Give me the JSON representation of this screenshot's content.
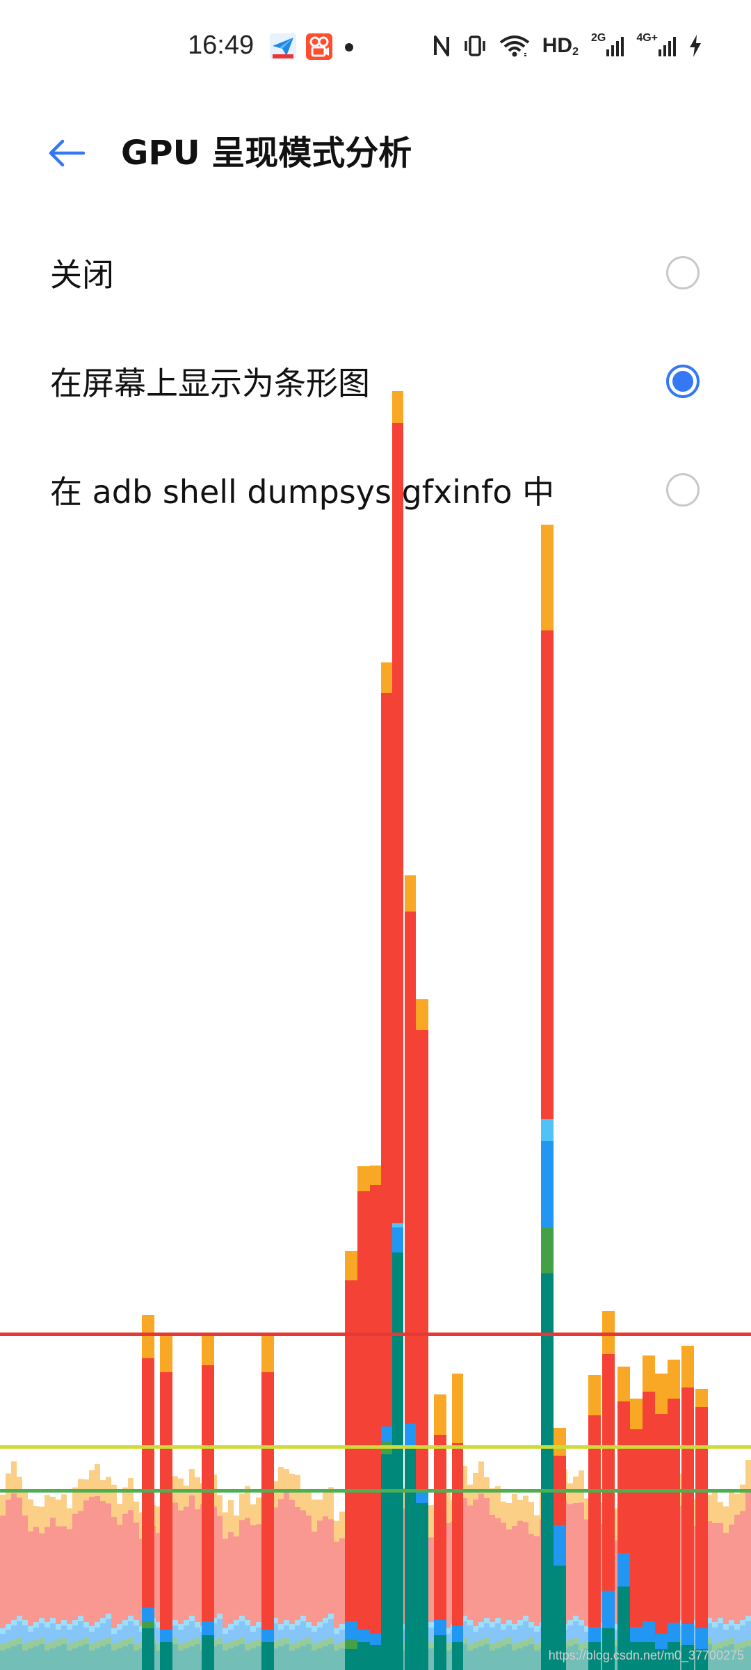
{
  "status_bar": {
    "time": "16:49",
    "network_label": "HD",
    "network_sub": "2",
    "sim1": "2G",
    "sim2": "4G+",
    "icons": [
      "nfc-icon",
      "vibrate-icon",
      "wifi-icon",
      "signal-2g-icon",
      "signal-4g-icon",
      "charging-icon"
    ],
    "notification_icons": [
      "paper-plane-app-icon",
      "kuaishou-app-icon"
    ]
  },
  "header": {
    "title": "GPU 呈现模式分析"
  },
  "options": [
    {
      "label": "关闭",
      "checked": false
    },
    {
      "label": "在屏幕上显示为条形图",
      "checked": true
    },
    {
      "label": "在 adb shell dumpsys gfxinfo 中",
      "checked": false
    }
  ],
  "profile_bars": {
    "threshold_colors": [
      "#e53935",
      "#cddc39",
      "#4caf50"
    ],
    "segment_colors": {
      "swap": "#f9a825",
      "process": "#f44336",
      "upload": "#4fc3f7",
      "draw": "#2196f3",
      "measure": "#43a047",
      "input": "#00897b"
    }
  },
  "watermark": "https://blog.csdn.net/m0_37700275"
}
